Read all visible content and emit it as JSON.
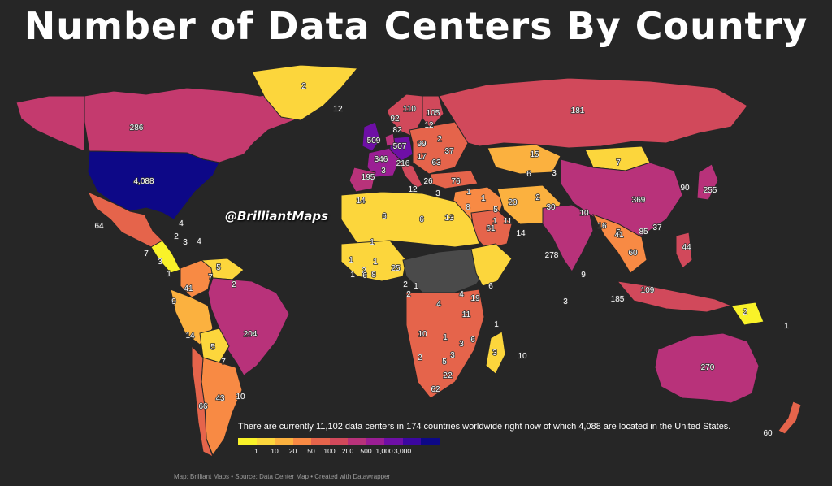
{
  "title": "Number of Data Centers By Country",
  "watermark": "@BrilliantMaps",
  "caption": "There are currently 11,102 data centers in 174 countries worldwide right now of which 4,088 are located in the United States.",
  "legend": {
    "colors": [
      "#f9f229",
      "#fcd63c",
      "#fbb13f",
      "#f88a44",
      "#e5644b",
      "#d1495b",
      "#b8327a",
      "#9b1e94",
      "#6e0fa6",
      "#3b07a0",
      "#0d0887"
    ],
    "labels": [
      "1",
      "10",
      "20",
      "50",
      "100",
      "200",
      "500",
      "1,000",
      "3,000"
    ]
  },
  "credit": "Map: Brilliant Maps • Source: Data Center Map • Created with Datawrapper",
  "colors": {
    "background": "#262626",
    "no_data": "#4a4a4a",
    "ocean_label": "#aaaaaa"
  },
  "countries": [
    {
      "name": "Canada",
      "value": "286",
      "color": "#c43a6e"
    },
    {
      "name": "United States",
      "value": "4,088",
      "color": "#0d0887"
    },
    {
      "name": "Greenland",
      "value": "2",
      "color": "#fcd63c"
    },
    {
      "name": "Mexico",
      "value": "64",
      "color": "#e5644b"
    },
    {
      "name": "Brazil",
      "value": "204",
      "color": "#b8327a"
    },
    {
      "name": "Russia",
      "value": "181",
      "color": "#d1495b"
    },
    {
      "name": "China",
      "value": "369",
      "color": "#b8327a"
    },
    {
      "name": "India",
      "value": "278",
      "color": "#b8327a"
    },
    {
      "name": "Australia",
      "value": "270",
      "color": "#b8327a"
    },
    {
      "name": "United Kingdom",
      "value": "509",
      "color": "#6e0fa6"
    },
    {
      "name": "Germany",
      "value": "507",
      "color": "#6e0fa6"
    },
    {
      "name": "France",
      "value": "346",
      "color": "#9b1e94"
    },
    {
      "name": "Netherlands",
      "value": "216",
      "color": "#b8327a"
    },
    {
      "name": "Japan",
      "value": "255",
      "color": "#b8327a"
    },
    {
      "name": "Indonesia",
      "value": "185",
      "color": "#d1495b"
    },
    {
      "name": "Argentina",
      "value": "43",
      "color": "#f88a44"
    },
    {
      "name": "South Africa",
      "value": "62",
      "color": "#e5644b"
    },
    {
      "name": "Mongolia",
      "value": "7",
      "color": "#fcd63c"
    },
    {
      "name": "Kazakhstan",
      "value": "15",
      "color": "#fbb13f"
    },
    {
      "name": "Saudi Arabia",
      "value": "61",
      "color": "#e5644b"
    },
    {
      "name": "Sudan",
      "value": "2",
      "color": "#fcd63c"
    },
    {
      "name": "Philippines",
      "value": "109",
      "color": "#d1495b"
    },
    {
      "name": "New Zealand",
      "value": "60",
      "color": "#e5644b"
    }
  ],
  "labels": [
    {
      "text": "2"
    },
    {
      "text": "12"
    },
    {
      "text": "286"
    },
    {
      "text": "4,088"
    },
    {
      "text": "64"
    },
    {
      "text": "4"
    },
    {
      "text": "2"
    },
    {
      "text": "4"
    },
    {
      "text": "3"
    },
    {
      "text": "7"
    },
    {
      "text": "3"
    },
    {
      "text": "1"
    },
    {
      "text": "5"
    },
    {
      "text": "2"
    },
    {
      "text": "7"
    },
    {
      "text": "41"
    },
    {
      "text": "9"
    },
    {
      "text": "14"
    },
    {
      "text": "5"
    },
    {
      "text": "7"
    },
    {
      "text": "204"
    },
    {
      "text": "43"
    },
    {
      "text": "10"
    },
    {
      "text": "66"
    },
    {
      "text": "14"
    },
    {
      "text": "6"
    },
    {
      "text": "6"
    },
    {
      "text": "13"
    },
    {
      "text": "1"
    },
    {
      "text": "1"
    },
    {
      "text": "2"
    },
    {
      "text": "1"
    },
    {
      "text": "1"
    },
    {
      "text": "6"
    },
    {
      "text": "8"
    },
    {
      "text": "25"
    },
    {
      "text": "2"
    },
    {
      "text": "1"
    },
    {
      "text": "2"
    },
    {
      "text": "4"
    },
    {
      "text": "4"
    },
    {
      "text": "19"
    },
    {
      "text": "6"
    },
    {
      "text": "11"
    },
    {
      "text": "10"
    },
    {
      "text": "1"
    },
    {
      "text": "6"
    },
    {
      "text": "3"
    },
    {
      "text": "5"
    },
    {
      "text": "3"
    },
    {
      "text": "2"
    },
    {
      "text": "2"
    },
    {
      "text": "62"
    },
    {
      "text": "2"
    },
    {
      "text": "1"
    },
    {
      "text": "3"
    },
    {
      "text": "10"
    },
    {
      "text": "3"
    },
    {
      "text": "181"
    },
    {
      "text": "110"
    },
    {
      "text": "105"
    },
    {
      "text": "92"
    },
    {
      "text": "82"
    },
    {
      "text": "12"
    },
    {
      "text": "509"
    },
    {
      "text": "507"
    },
    {
      "text": "99"
    },
    {
      "text": "2"
    },
    {
      "text": "37"
    },
    {
      "text": "17"
    },
    {
      "text": "346"
    },
    {
      "text": "216"
    },
    {
      "text": "63"
    },
    {
      "text": "195"
    },
    {
      "text": "3"
    },
    {
      "text": "26"
    },
    {
      "text": "76"
    },
    {
      "text": "12"
    },
    {
      "text": "3"
    },
    {
      "text": "15"
    },
    {
      "text": "6"
    },
    {
      "text": "3"
    },
    {
      "text": "7"
    },
    {
      "text": "20"
    },
    {
      "text": "2"
    },
    {
      "text": "30"
    },
    {
      "text": "1"
    },
    {
      "text": "1"
    },
    {
      "text": "8"
    },
    {
      "text": "1"
    },
    {
      "text": "61"
    },
    {
      "text": "11"
    },
    {
      "text": "14"
    },
    {
      "text": "5"
    },
    {
      "text": "369"
    },
    {
      "text": "90"
    },
    {
      "text": "255"
    },
    {
      "text": "10"
    },
    {
      "text": "16"
    },
    {
      "text": "278"
    },
    {
      "text": "5"
    },
    {
      "text": "41"
    },
    {
      "text": "85"
    },
    {
      "text": "37"
    },
    {
      "text": "60"
    },
    {
      "text": "44"
    },
    {
      "text": "9"
    },
    {
      "text": "109"
    },
    {
      "text": "185"
    },
    {
      "text": "2"
    },
    {
      "text": "1"
    },
    {
      "text": "270"
    },
    {
      "text": "60"
    }
  ]
}
